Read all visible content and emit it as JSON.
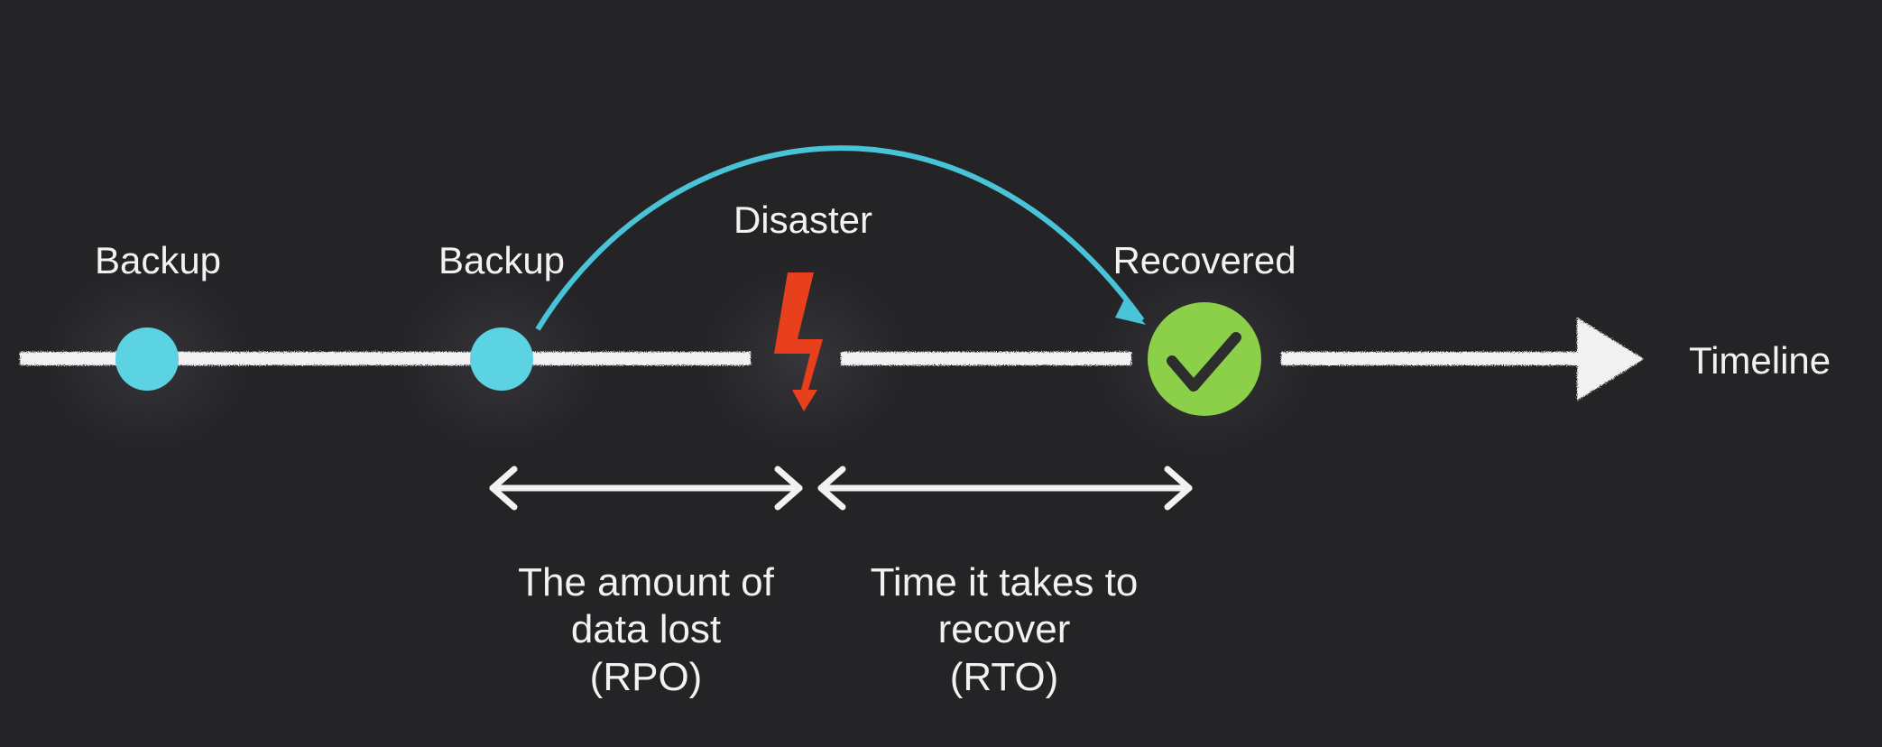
{
  "labels": {
    "backup_1": "Backup",
    "backup_2": "Backup",
    "disaster": "Disaster",
    "recovered": "Recovered",
    "timeline": "Timeline"
  },
  "rpo": {
    "line1": "The amount of",
    "line2": "data lost",
    "line3": "(RPO)"
  },
  "rto": {
    "line1": "Time it takes to",
    "line2": "recover",
    "line3": "(RTO)"
  },
  "icons": {
    "disaster": "lightning-bolt-icon",
    "recovered": "checkmark-icon",
    "timeline_end": "arrow-head-icon"
  },
  "colors": {
    "background": "#242326",
    "backup_dot": "#5bd3e3",
    "recovery_arc": "#49c3d8",
    "disaster_bolt": "#e8401c",
    "recovered_badge": "#8ccf48",
    "line": "#f2f2f2"
  }
}
